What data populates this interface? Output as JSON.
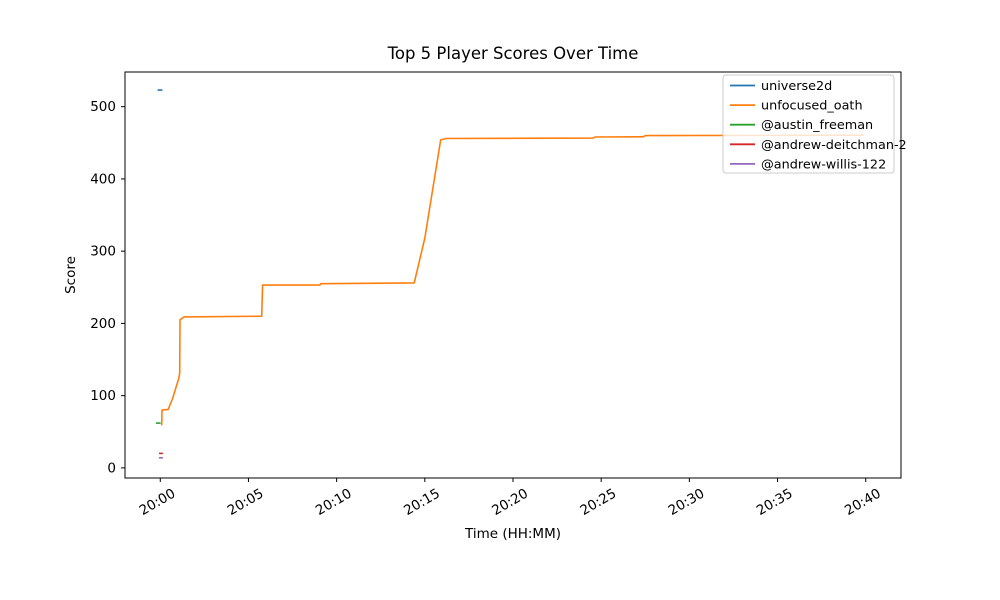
{
  "figure": {
    "background": "#ffffff",
    "text_color": "#000000",
    "spine_color": "#000000",
    "legend_border_color": "#cccccc",
    "legend_bg": "#ffffff"
  },
  "chart_data": {
    "type": "line",
    "title": "Top 5 Player Scores Over Time",
    "xlabel": "Time (HH:MM)",
    "ylabel": "Score",
    "grid": false,
    "legend_position": "upper right",
    "x_units": "minutes after 20:00",
    "xlim": [
      -2,
      42
    ],
    "ylim": [
      -14,
      548
    ],
    "x_ticks": [
      {
        "t": 0,
        "label": "20:00"
      },
      {
        "t": 5,
        "label": "20:05"
      },
      {
        "t": 10,
        "label": "20:10"
      },
      {
        "t": 15,
        "label": "20:15"
      },
      {
        "t": 20,
        "label": "20:20"
      },
      {
        "t": 25,
        "label": "20:25"
      },
      {
        "t": 30,
        "label": "20:30"
      },
      {
        "t": 35,
        "label": "20:35"
      },
      {
        "t": 40,
        "label": "20:40"
      }
    ],
    "y_ticks": [
      {
        "v": 0,
        "label": "0"
      },
      {
        "v": 100,
        "label": "100"
      },
      {
        "v": 200,
        "label": "200"
      },
      {
        "v": 300,
        "label": "300"
      },
      {
        "v": 400,
        "label": "400"
      },
      {
        "v": 500,
        "label": "500"
      }
    ],
    "series": [
      {
        "name": "universe2d",
        "color": "#1f77b4",
        "points": [
          [
            -0.15,
            523
          ],
          [
            0.12,
            523
          ]
        ]
      },
      {
        "name": "unfocused_oath",
        "color": "#ff7f0e",
        "points": [
          [
            0.08,
            59
          ],
          [
            0.1,
            80
          ],
          [
            0.45,
            81
          ],
          [
            0.7,
            96
          ],
          [
            0.9,
            112
          ],
          [
            1.05,
            124
          ],
          [
            1.1,
            131
          ],
          [
            1.12,
            205
          ],
          [
            1.35,
            209
          ],
          [
            5.75,
            210
          ],
          [
            5.8,
            253
          ],
          [
            9.05,
            253
          ],
          [
            9.1,
            255
          ],
          [
            14.4,
            256
          ],
          [
            15.0,
            318
          ],
          [
            15.9,
            454
          ],
          [
            16.2,
            456
          ],
          [
            24.55,
            456.5
          ],
          [
            24.65,
            458
          ],
          [
            27.4,
            458.3
          ],
          [
            27.5,
            460
          ],
          [
            39.9,
            460.5
          ]
        ]
      },
      {
        "name": "@austin_freeman",
        "color": "#2ca02c",
        "points": [
          [
            -0.25,
            62
          ],
          [
            0.02,
            62
          ]
        ]
      },
      {
        "name": "@andrew-deitchman-2",
        "color": "#d62728",
        "points": [
          [
            -0.07,
            20
          ],
          [
            0.15,
            20
          ]
        ]
      },
      {
        "name": "@andrew-willis-122",
        "color": "#9467bd",
        "points": [
          [
            -0.07,
            14
          ],
          [
            0.15,
            14
          ]
        ]
      }
    ]
  }
}
